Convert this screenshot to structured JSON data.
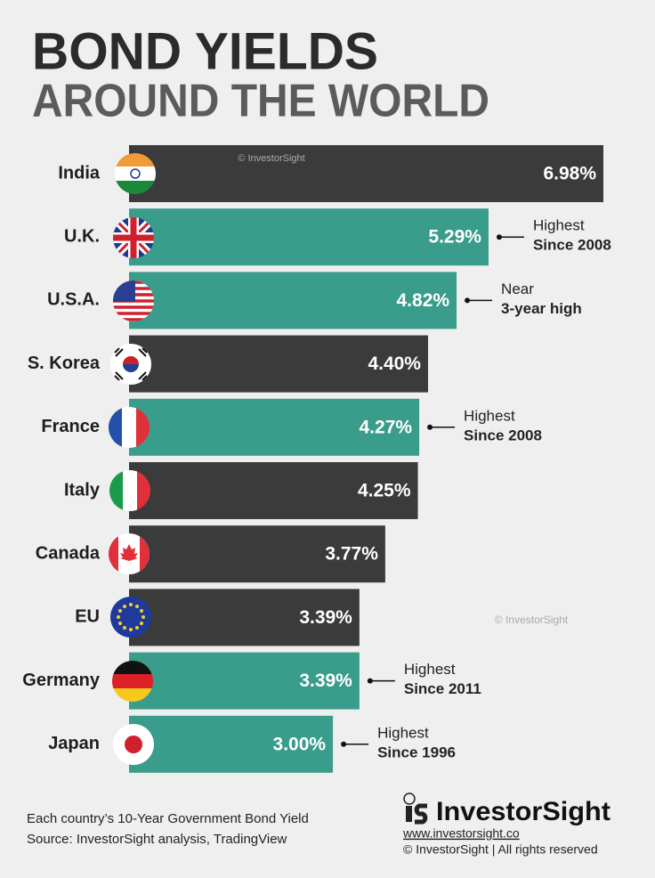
{
  "chart_data": {
    "type": "bar",
    "orientation": "horizontal",
    "title": [
      "BOND YIELDS",
      "AROUND THE WORLD"
    ],
    "categories": [
      "India",
      "U.K.",
      "U.S.A.",
      "S. Korea",
      "France",
      "Italy",
      "Canada",
      "EU",
      "Germany",
      "Japan"
    ],
    "values": [
      6.98,
      5.29,
      4.82,
      4.4,
      4.27,
      4.25,
      3.77,
      3.39,
      3.39,
      3.0
    ],
    "value_labels": [
      "6.98%",
      "5.29%",
      "4.82%",
      "4.40%",
      "4.27%",
      "4.25%",
      "3.77%",
      "3.39%",
      "3.39%",
      "3.00%"
    ],
    "colors": [
      "#3b3b3b",
      "#3a9c8a",
      "#3a9c8a",
      "#3b3b3b",
      "#3a9c8a",
      "#3b3b3b",
      "#3b3b3b",
      "#3b3b3b",
      "#3a9c8a",
      "#3a9c8a"
    ],
    "annotations": [
      null,
      [
        "Highest",
        "Since 2008"
      ],
      [
        "Near",
        "3-year high"
      ],
      null,
      [
        "Highest",
        "Since 2008"
      ],
      null,
      null,
      null,
      [
        "Highest",
        "Since 2011"
      ],
      [
        "Highest",
        "Since 1996"
      ]
    ],
    "watermarks": [
      "© InvestorSight",
      "© InvestorSight"
    ],
    "notes": [
      "Each country’s 10-Year Government Bond Yield",
      "Source: InvestorSight analysis, TradingView"
    ],
    "brand": "InvestorSight",
    "url": "www.investorsight.co",
    "rights": "© InvestorSight |  All rights reserved"
  }
}
